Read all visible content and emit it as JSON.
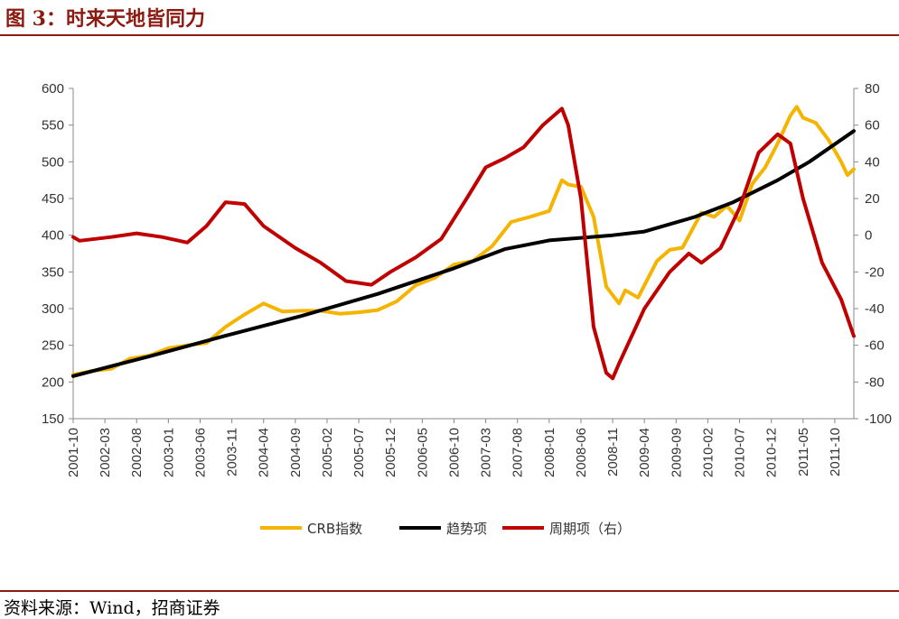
{
  "figure": {
    "title": "图 3：时来天地皆同力",
    "source": "资料来源：Wind，招商证券"
  },
  "chart_data": {
    "type": "line",
    "x_ticks": [
      "2001-10",
      "2002-03",
      "2002-08",
      "2003-01",
      "2003-06",
      "2003-11",
      "2004-04",
      "2004-09",
      "2005-02",
      "2005-07",
      "2005-12",
      "2006-05",
      "2006-10",
      "2007-03",
      "2007-08",
      "2008-01",
      "2008-06",
      "2008-11",
      "2009-04",
      "2009-09",
      "2010-02",
      "2010-07",
      "2010-12",
      "2011-05",
      "2011-10"
    ],
    "x_range": [
      "2001-10",
      "2012-01"
    ],
    "y_left": {
      "range": [
        150,
        600
      ],
      "ticks": [
        "150",
        "200",
        "250",
        "300",
        "350",
        "400",
        "450",
        "500",
        "550",
        "600"
      ]
    },
    "y_right": {
      "range": [
        -100,
        80
      ],
      "ticks": [
        "-100",
        "-80",
        "-60",
        "-40",
        "-20",
        "0",
        "20",
        "40",
        "60",
        "80"
      ]
    },
    "grid": false,
    "legend_position": "bottom",
    "series": [
      {
        "name": "CRB指数",
        "axis": "left",
        "color": "#f5b400",
        "x": [
          "2001-10",
          "2002-01",
          "2002-04",
          "2002-07",
          "2002-10",
          "2003-01",
          "2003-04",
          "2003-07",
          "2003-10",
          "2004-01",
          "2004-04",
          "2004-07",
          "2004-10",
          "2005-01",
          "2005-04",
          "2005-07",
          "2005-10",
          "2006-01",
          "2006-04",
          "2006-07",
          "2006-10",
          "2007-01",
          "2007-04",
          "2007-07",
          "2007-10",
          "2008-01",
          "2008-03",
          "2008-04",
          "2008-06",
          "2008-08",
          "2008-10",
          "2008-12",
          "2009-01",
          "2009-03",
          "2009-06",
          "2009-08",
          "2009-10",
          "2010-01",
          "2010-03",
          "2010-05",
          "2010-07",
          "2010-09",
          "2010-11",
          "2011-01",
          "2011-03",
          "2011-04",
          "2011-05",
          "2011-07",
          "2011-09",
          "2011-11",
          "2011-12",
          "2012-01"
        ],
        "values": [
          210,
          215,
          218,
          232,
          236,
          246,
          250,
          253,
          275,
          292,
          307,
          296,
          297,
          297,
          293,
          295,
          298,
          310,
          332,
          342,
          360,
          365,
          385,
          418,
          425,
          433,
          475,
          469,
          466,
          425,
          330,
          307,
          325,
          315,
          365,
          380,
          383,
          431,
          425,
          440,
          420,
          470,
          492,
          525,
          563,
          575,
          560,
          553,
          530,
          500,
          482,
          490
        ]
      },
      {
        "name": "趋势项",
        "axis": "left",
        "color": "#000000",
        "x": [
          "2001-10",
          "2002-10",
          "2003-10",
          "2004-10",
          "2005-10",
          "2006-10",
          "2007-06",
          "2008-01",
          "2008-11",
          "2009-04",
          "2009-12",
          "2010-06",
          "2011-01",
          "2011-06",
          "2012-01"
        ],
        "values": [
          208,
          235,
          263,
          290,
          320,
          355,
          381,
          393,
          400,
          405,
          425,
          445,
          475,
          500,
          542
        ]
      },
      {
        "name": "周期项（右）",
        "axis": "right",
        "color": "#c00000",
        "x": [
          "2001-10",
          "2001-11",
          "2002-04",
          "2002-08",
          "2002-12",
          "2003-04",
          "2003-07",
          "2003-10",
          "2004-01",
          "2004-04",
          "2004-09",
          "2005-01",
          "2005-05",
          "2005-09",
          "2005-12",
          "2006-04",
          "2006-08",
          "2006-12",
          "2007-03",
          "2007-06",
          "2007-09",
          "2007-12",
          "2008-03",
          "2008-04",
          "2008-06",
          "2008-08",
          "2008-10",
          "2008-11",
          "2008-12",
          "2009-04",
          "2009-08",
          "2009-11",
          "2010-01",
          "2010-04",
          "2010-07",
          "2010-10",
          "2011-01",
          "2011-03",
          "2011-05",
          "2011-08",
          "2011-11",
          "2012-01"
        ],
        "values": [
          -1,
          -3,
          -1,
          1,
          -1,
          -4,
          5,
          18,
          17,
          5,
          -7,
          -15,
          -25,
          -27,
          -20,
          -12,
          -2,
          20,
          37,
          42,
          48,
          60,
          69,
          60,
          20,
          -50,
          -75,
          -78,
          -70,
          -40,
          -20,
          -10,
          -15,
          -7,
          15,
          45,
          55,
          50,
          20,
          -15,
          -35,
          -55
        ]
      }
    ]
  }
}
